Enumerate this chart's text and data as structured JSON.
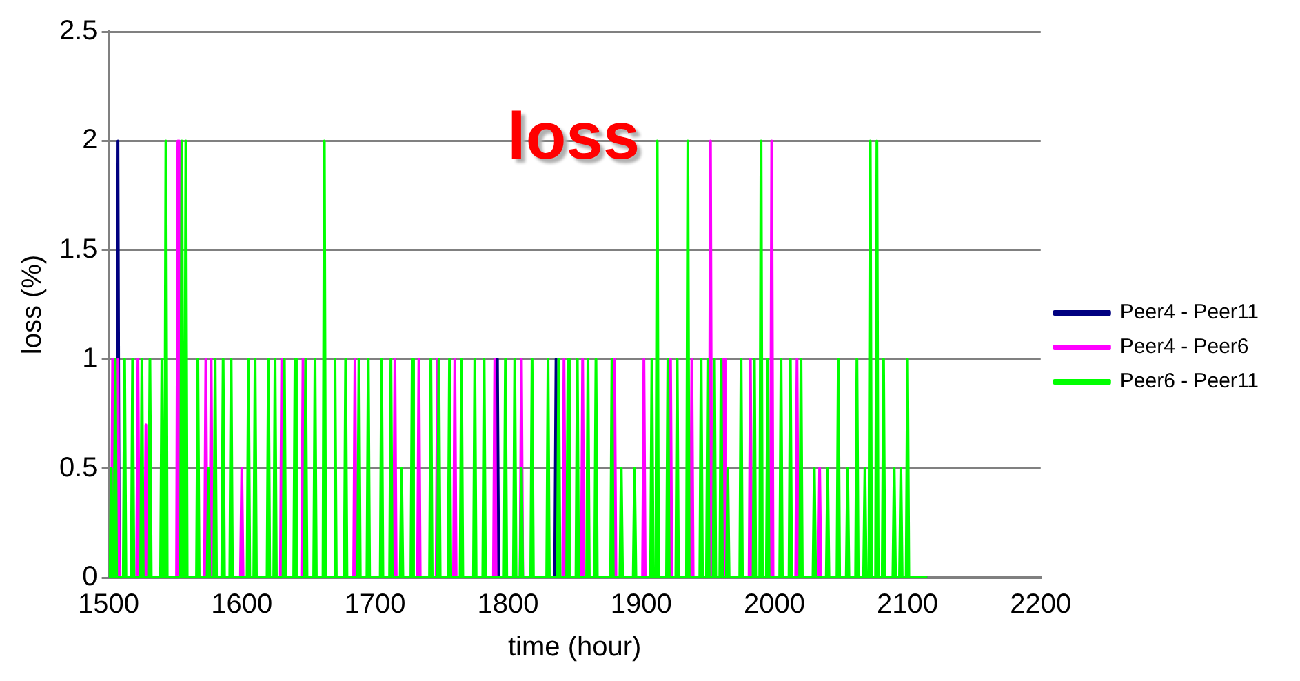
{
  "chart_data": {
    "type": "line",
    "title": "loss",
    "xlabel": "time (hour)",
    "ylabel": "loss (%)",
    "xlim": [
      1500,
      2200
    ],
    "xticks": [
      1500,
      1600,
      1700,
      1800,
      1900,
      2000,
      2100,
      2200
    ],
    "ylim": [
      0,
      2.5
    ],
    "yticks": [
      0,
      0.5,
      1,
      1.5,
      2,
      2.5
    ],
    "grid": "y",
    "legend": "right",
    "marker": "none",
    "line_style": "solid",
    "series": [
      {
        "name": "Peer4 - Peer11",
        "color": "#000080",
        "x": [
          1500,
          1506,
          1507,
          1508,
          1791,
          1792,
          1793,
          1835,
          1836,
          1837,
          2115
        ],
        "values": [
          0,
          0,
          2,
          0,
          0,
          1,
          0,
          0,
          1,
          0,
          0
        ]
      },
      {
        "name": "Peer4 - Peer6",
        "color": "#ff00ff",
        "x": [
          1500,
          1502,
          1503,
          1504,
          1506,
          1507,
          1508,
          1521,
          1522,
          1523,
          1527,
          1528,
          1529,
          1551,
          1552,
          1553,
          1572,
          1573,
          1574,
          1576,
          1577,
          1578,
          1599,
          1600,
          1601,
          1629,
          1630,
          1631,
          1645,
          1646,
          1647,
          1684,
          1685,
          1686,
          1714,
          1715,
          1716,
          1732,
          1733,
          1734,
          1746,
          1747,
          1748,
          1759,
          1760,
          1761,
          1789,
          1790,
          1791,
          1809,
          1810,
          1811,
          1841,
          1842,
          1843,
          1855,
          1856,
          1857,
          1879,
          1880,
          1881,
          1901,
          1902,
          1903,
          1921,
          1922,
          1923,
          1937,
          1938,
          1939,
          1951,
          1952,
          1953,
          1961,
          1962,
          1963,
          1981,
          1982,
          1983,
          1997,
          1998,
          1999,
          2016,
          2017,
          2018,
          2033,
          2034,
          2035,
          2115
        ],
        "values": [
          0,
          0,
          1,
          0,
          0,
          1,
          0,
          0,
          1,
          0,
          0,
          0.7,
          0,
          0,
          2,
          0,
          0,
          1,
          0,
          0,
          1,
          0,
          0,
          0.5,
          0,
          0,
          1,
          0,
          0,
          1,
          0,
          0,
          1,
          0,
          0,
          1,
          0,
          0,
          1,
          0,
          0,
          1,
          0,
          0,
          1,
          0,
          0,
          1,
          0,
          0,
          1,
          0,
          0,
          1,
          0,
          0,
          1,
          0,
          0,
          1,
          0,
          0,
          1,
          0,
          0,
          1,
          0,
          0,
          1,
          0,
          0,
          2,
          0,
          0,
          1,
          0,
          0,
          1,
          0,
          0,
          2,
          0,
          0,
          1,
          0,
          0,
          0.5,
          0,
          0
        ]
      },
      {
        "name": "Peer6 - Peer11",
        "color": "#00ff00",
        "x": [
          1500,
          1501,
          1502,
          1503,
          1504,
          1505,
          1506,
          1511,
          1512,
          1513,
          1517,
          1518,
          1519,
          1524,
          1525,
          1526,
          1530,
          1531,
          1532,
          1539,
          1540,
          1541,
          1542,
          1543,
          1544,
          1554,
          1555,
          1556,
          1557,
          1558,
          1559,
          1566,
          1567,
          1568,
          1574,
          1575,
          1576,
          1579,
          1580,
          1581,
          1585,
          1586,
          1587,
          1591,
          1592,
          1593,
          1604,
          1605,
          1606,
          1609,
          1610,
          1611,
          1619,
          1620,
          1621,
          1624,
          1625,
          1626,
          1631,
          1632,
          1633,
          1639,
          1640,
          1641,
          1647,
          1648,
          1649,
          1654,
          1655,
          1656,
          1661,
          1662,
          1663,
          1669,
          1670,
          1671,
          1677,
          1678,
          1679,
          1687,
          1688,
          1689,
          1694,
          1695,
          1696,
          1704,
          1705,
          1706,
          1711,
          1712,
          1713,
          1719,
          1720,
          1721,
          1727,
          1728,
          1729,
          1741,
          1742,
          1743,
          1747,
          1748,
          1749,
          1755,
          1756,
          1757,
          1764,
          1765,
          1766,
          1774,
          1775,
          1776,
          1781,
          1782,
          1783,
          1797,
          1798,
          1799,
          1804,
          1805,
          1806,
          1809,
          1810,
          1811,
          1817,
          1818,
          1819,
          1829,
          1830,
          1831,
          1837,
          1838,
          1839,
          1844,
          1845,
          1846,
          1851,
          1852,
          1853,
          1859,
          1860,
          1861,
          1865,
          1866,
          1867,
          1877,
          1878,
          1879,
          1884,
          1885,
          1886,
          1894,
          1895,
          1896,
          1907,
          1908,
          1909,
          1911,
          1912,
          1913,
          1919,
          1920,
          1921,
          1926,
          1927,
          1928,
          1934,
          1935,
          1936,
          1944,
          1945,
          1946,
          1949,
          1950,
          1951,
          1954,
          1955,
          1956,
          1959,
          1960,
          1961,
          1964,
          1965,
          1966,
          1974,
          1975,
          1976,
          1984,
          1985,
          1986,
          1989,
          1990,
          1991,
          1994,
          1995,
          1996,
          2004,
          2005,
          2006,
          2011,
          2012,
          2013,
          2019,
          2020,
          2021,
          2029,
          2030,
          2031,
          2039,
          2040,
          2041,
          2047,
          2048,
          2049,
          2054,
          2055,
          2056,
          2061,
          2062,
          2063,
          2067,
          2068,
          2069,
          2071,
          2072,
          2073,
          2076,
          2077,
          2078,
          2081,
          2082,
          2083,
          2089,
          2090,
          2091,
          2094,
          2095,
          2096,
          2099,
          2100,
          2101,
          2115
        ],
        "values": [
          0,
          0,
          0.5,
          0,
          0,
          1,
          0,
          0,
          1,
          0,
          0,
          1,
          0,
          0,
          1,
          0,
          0,
          1,
          0,
          0,
          1,
          0,
          0,
          2,
          0,
          0,
          2,
          0,
          0,
          2,
          0,
          0,
          1,
          0,
          0,
          0.5,
          0,
          0,
          1,
          0,
          0,
          1,
          0,
          0,
          1,
          0,
          0,
          1,
          0,
          0,
          1,
          0,
          0,
          1,
          0,
          0,
          1,
          0,
          0,
          1,
          0,
          0,
          1,
          0,
          0,
          1,
          0,
          0,
          1,
          0,
          0,
          2,
          0,
          0,
          1,
          0,
          0,
          1,
          0,
          0,
          1,
          0,
          0,
          1,
          0,
          0,
          1,
          0,
          0,
          1,
          0,
          0,
          0.5,
          0,
          0,
          1,
          0,
          0,
          1,
          0,
          0,
          1,
          0,
          0,
          1,
          0,
          0,
          1,
          0,
          0,
          1,
          0,
          0,
          1,
          0,
          0,
          1,
          0,
          0,
          1,
          0,
          0,
          0.5,
          0,
          0,
          1,
          0,
          0,
          1,
          0,
          0,
          1,
          0,
          0,
          1,
          0,
          0,
          1,
          0,
          0,
          1,
          0,
          0,
          1,
          0,
          0,
          1,
          0,
          0,
          0.5,
          0,
          0,
          0.5,
          0,
          0,
          1,
          0,
          0,
          2,
          0,
          0,
          1,
          0,
          0,
          1,
          0,
          0,
          2,
          0,
          0,
          1,
          0,
          0,
          1,
          0,
          0,
          1,
          0,
          0,
          1,
          0,
          0,
          0.5,
          0,
          0,
          1,
          0,
          0,
          1,
          0,
          0,
          2,
          0,
          0,
          1,
          0,
          0,
          1,
          0,
          0,
          1,
          0,
          0,
          1,
          0,
          0,
          0.5,
          0,
          0,
          0.5,
          0,
          0,
          1,
          0,
          0,
          0.5,
          0,
          0,
          1,
          0,
          0,
          0.5,
          0,
          0,
          2,
          0,
          0,
          2,
          0,
          0,
          1,
          0,
          0,
          0.5,
          0,
          0,
          0.5,
          0,
          0,
          1,
          0,
          0
        ]
      }
    ]
  }
}
